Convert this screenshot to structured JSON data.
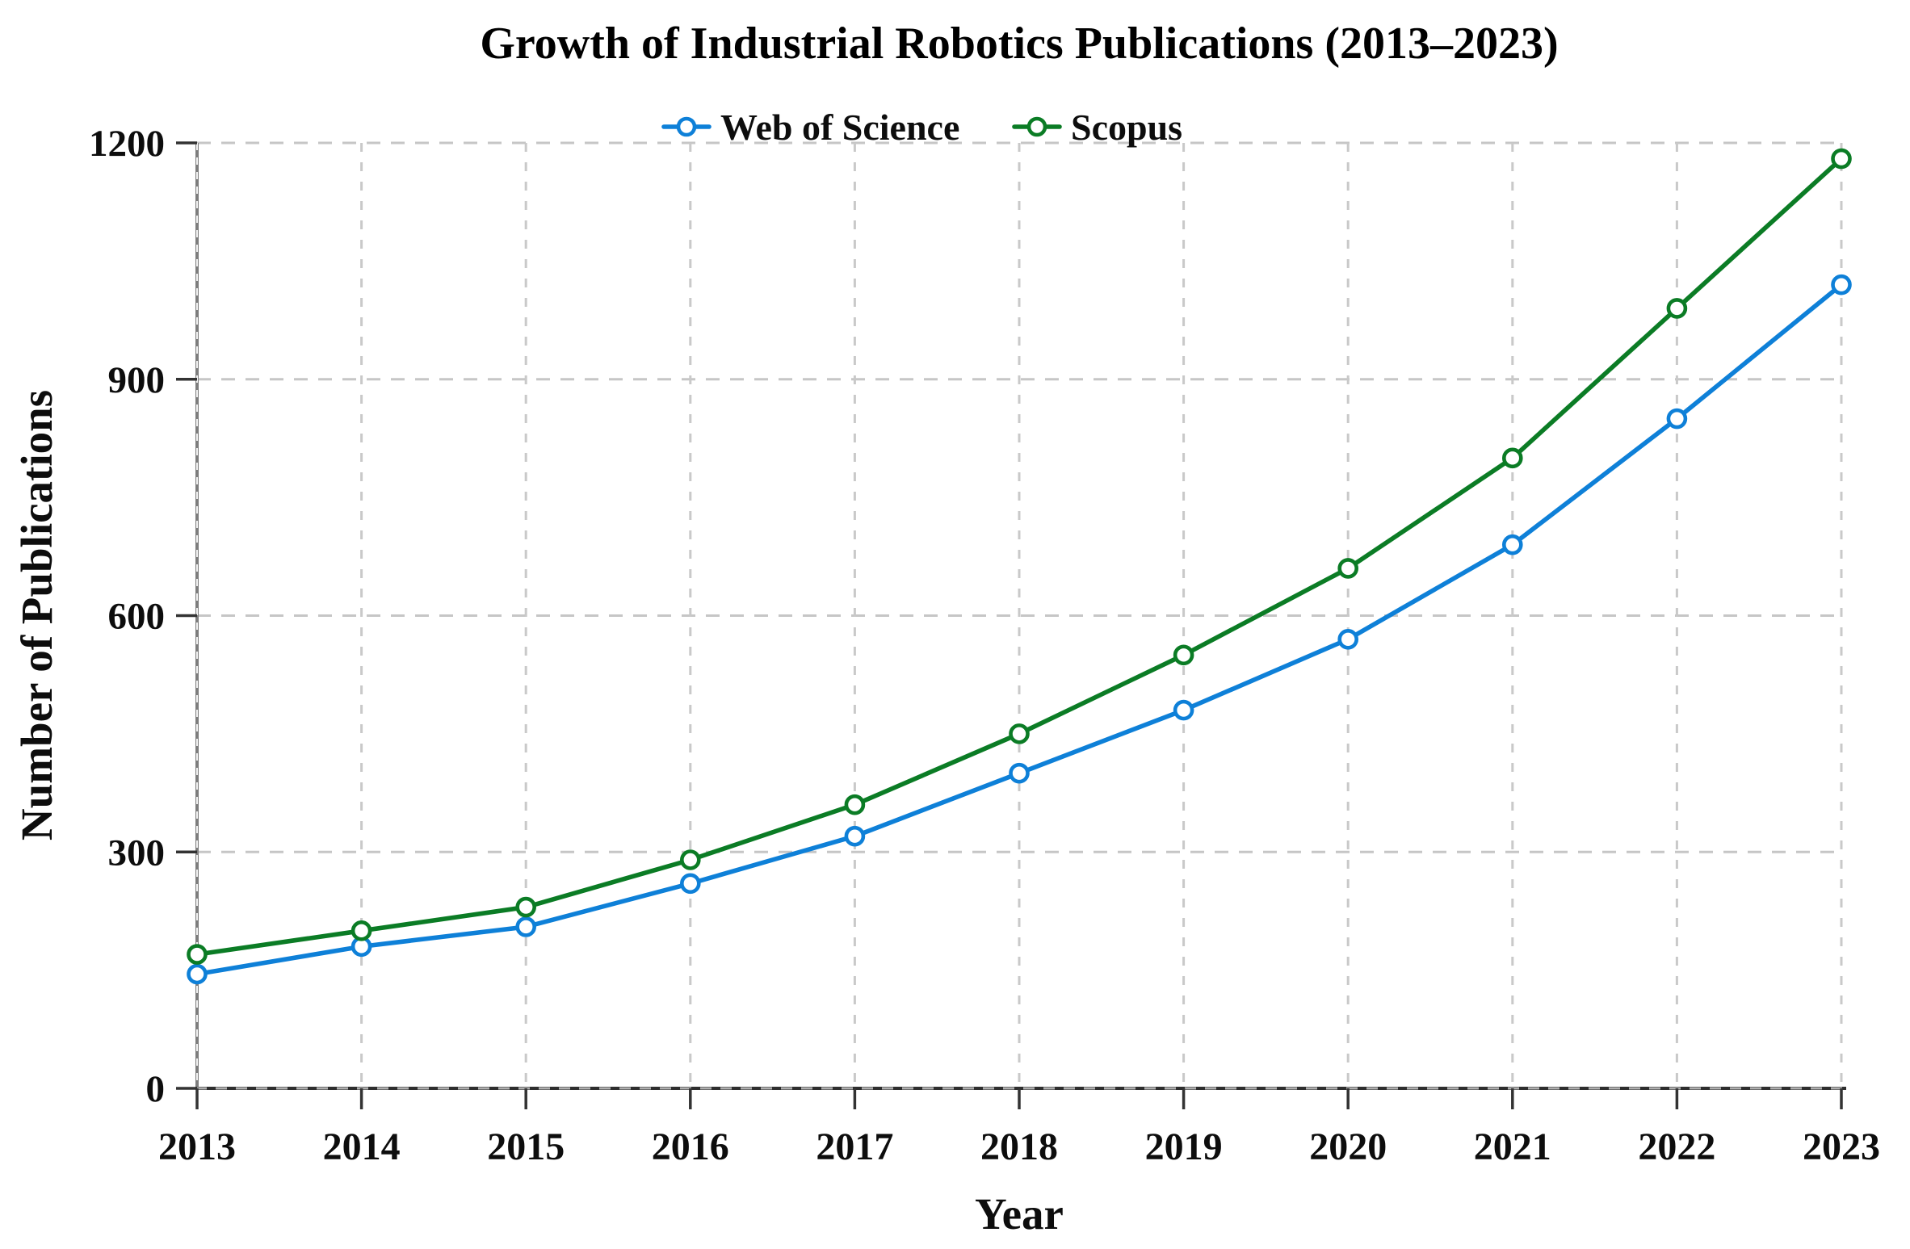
{
  "page": {
    "background": "#ffffff"
  },
  "chart_data": {
    "type": "line",
    "title": "Growth of Industrial Robotics Publications (2013–2023)",
    "xlabel": "Year",
    "ylabel": "Number of Publications",
    "x": [
      2013,
      2014,
      2015,
      2016,
      2017,
      2018,
      2019,
      2020,
      2021,
      2022,
      2023
    ],
    "series": [
      {
        "name": "Web of Science",
        "color": "#0e80d8",
        "marker": "open-circle",
        "values": [
          145,
          180,
          205,
          260,
          320,
          400,
          480,
          570,
          690,
          850,
          1020
        ]
      },
      {
        "name": "Scopus",
        "color": "#0b7c25",
        "marker": "open-circle",
        "values": [
          170,
          200,
          230,
          290,
          360,
          450,
          550,
          660,
          800,
          990,
          1180
        ]
      }
    ],
    "ylim": [
      0,
      1200
    ],
    "yticks": [
      0,
      300,
      600,
      900,
      1200
    ],
    "grid": "dashed-both-axes",
    "legend_position": "top-center",
    "grid_color": "#c6c6c6"
  }
}
